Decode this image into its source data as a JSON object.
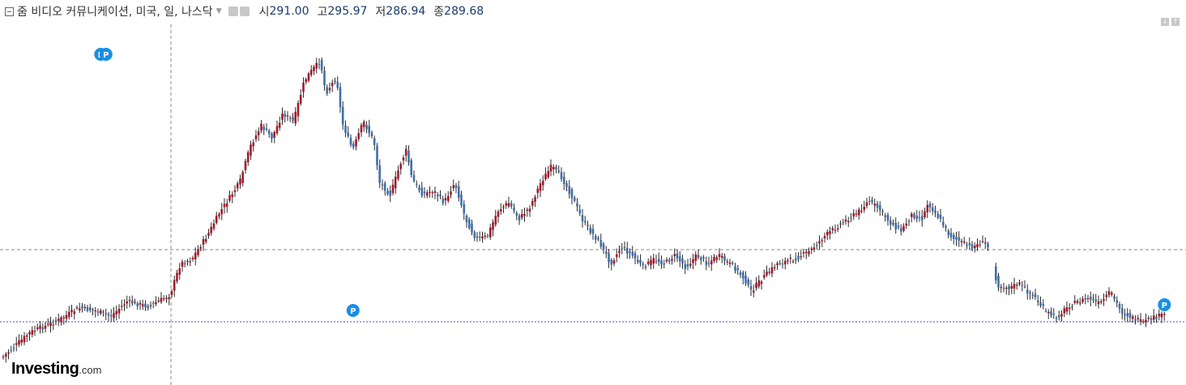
{
  "header": {
    "title": "줌 비디오 커뮤니케이션, 미국, 일, 나스닥",
    "ohlc": [
      {
        "label": "시",
        "value": "291.00"
      },
      {
        "label": "고",
        "value": "295.97"
      },
      {
        "label": "저",
        "value": "286.94"
      },
      {
        "label": "종",
        "value": "289.68"
      }
    ]
  },
  "logo": {
    "brand": "Investing",
    "suffix": ".com"
  },
  "colors": {
    "up": "#a31a2a",
    "down": "#3f6fa8",
    "marker": "#1a8fe3",
    "price_line": "#3b55c7"
  },
  "chart_data": {
    "type": "candlestick",
    "symbol_text": "줌 비디오 커뮤니케이션, 미국, 일, 나스닥",
    "interval": "일",
    "exchange": "나스닥",
    "last": {
      "open": 291.0,
      "high": 295.97,
      "low": 286.94,
      "close": 289.68
    },
    "grid": false,
    "marker_label": "P",
    "marker_bars": [
      37,
      39,
      131,
      441
    ]
  }
}
